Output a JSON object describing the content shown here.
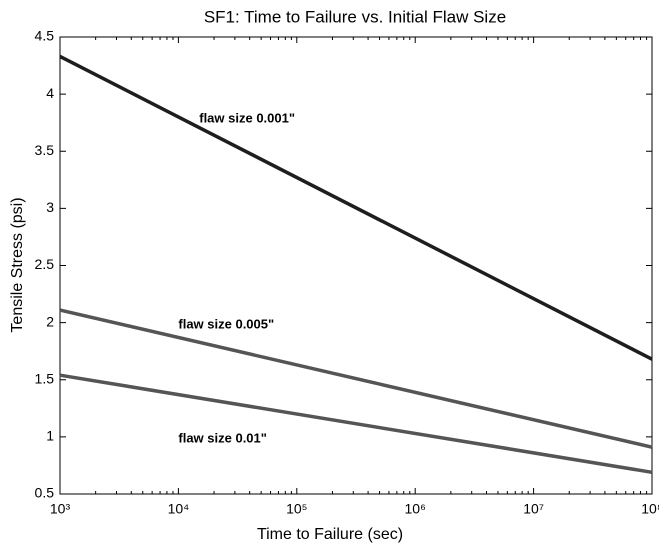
{
  "chart_data": {
    "type": "line",
    "title": "SF1: Time to Failure vs. Initial Flaw Size",
    "xlabel": "Time to Failure (sec)",
    "ylabel": "Tensile Stress (psi)",
    "xscale": "log",
    "x": [
      1000,
      100000000
    ],
    "series": [
      {
        "color": "#1e1e1e",
        "values": [
          4.33,
          1.68
        ]
      },
      {
        "color": "#555555",
        "values": [
          2.11,
          0.91
        ]
      },
      {
        "color": "#555555",
        "values": [
          1.54,
          0.69
        ]
      }
    ],
    "annotations": [
      {
        "text": "flaw size 0.001\"",
        "x": 15000,
        "y": 3.78
      },
      {
        "text": "flaw size 0.005\"",
        "x": 10000,
        "y": 1.98
      },
      {
        "text": "flaw size 0.01\"",
        "x": 10000,
        "y": 0.98
      }
    ],
    "xlim": [
      1000,
      100000000
    ],
    "xticks": [
      {
        "value": 1000,
        "label": "10³"
      },
      {
        "value": 10000,
        "label": "10⁴"
      },
      {
        "value": 100000,
        "label": "10⁵"
      },
      {
        "value": 1000000,
        "label": "10⁶"
      },
      {
        "value": 10000000,
        "label": "10⁷"
      },
      {
        "value": 100000000,
        "label": "10⁸"
      }
    ],
    "ylim": [
      0.5,
      4.5
    ],
    "yticks": [
      0.5,
      1,
      1.5,
      2,
      2.5,
      3,
      3.5,
      4,
      4.5
    ],
    "grid": false
  }
}
